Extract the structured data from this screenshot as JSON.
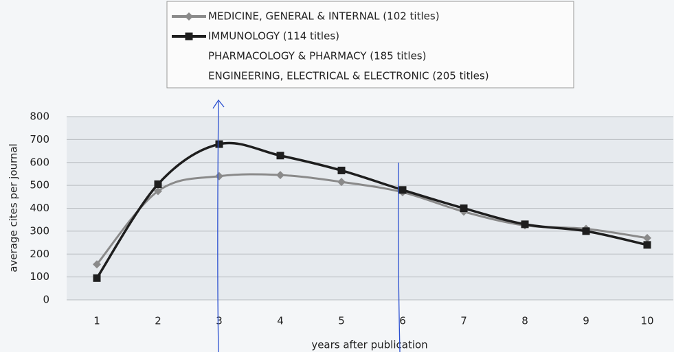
{
  "chart_data": {
    "type": "line",
    "x_label": "years after publication",
    "y_label": "average cites per journal",
    "categories": [
      "1",
      "2",
      "3",
      "4",
      "5",
      "6",
      "7",
      "8",
      "9",
      "10"
    ],
    "series": [
      {
        "name": "MEDICINE, GENERAL & INTERNAL (102 titles)",
        "color": "#8a8a8a",
        "marker": "diamond",
        "values": [
          155,
          475,
          540,
          545,
          515,
          470,
          385,
          325,
          310,
          270
        ]
      },
      {
        "name": "IMMUNOLOGY (114 titles)",
        "color": "#1e1e1e",
        "marker": "square",
        "values": [
          95,
          505,
          680,
          630,
          565,
          480,
          400,
          330,
          300,
          240
        ]
      },
      {
        "name": "PHARMACOLOGY & PHARMACY (185 titles)",
        "values": [
          null,
          null,
          null,
          null,
          null,
          null,
          null,
          null,
          null,
          null
        ]
      },
      {
        "name": "ENGINEERING, ELECTRICAL & ELECTRONIC (205 titles)",
        "values": [
          null,
          null,
          null,
          null,
          null,
          null,
          null,
          null,
          null,
          null
        ]
      }
    ],
    "ylim": [
      0,
      800
    ],
    "yticks": [
      0,
      100,
      200,
      300,
      400,
      500,
      600,
      700,
      800
    ],
    "grid": true,
    "legend": "top"
  }
}
